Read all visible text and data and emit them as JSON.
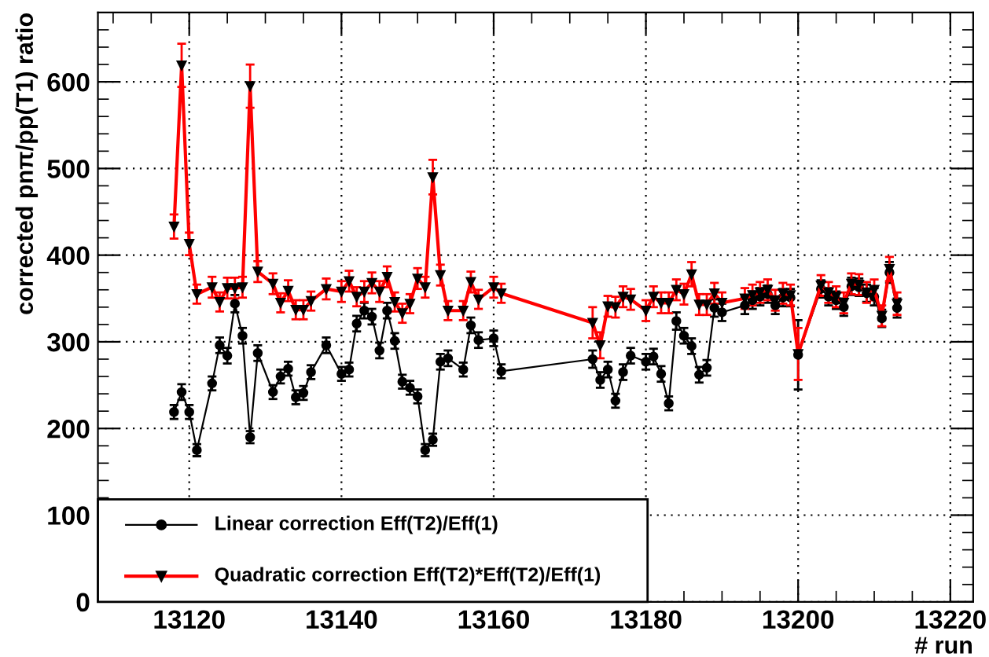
{
  "chart_data": {
    "type": "line",
    "xlabel": "# run",
    "ylabel": "corrected pnπ/pp(T1) ratio",
    "xlim": [
      13108,
      13223
    ],
    "xticks": [
      13120,
      13140,
      13160,
      13180,
      13200,
      13220
    ],
    "ylim": [
      0,
      680
    ],
    "yticks": [
      0,
      100,
      200,
      300,
      400,
      500,
      600
    ],
    "grid": true,
    "legend": "bottom left",
    "line_style": "solid",
    "series": [
      {
        "name": "Linear correction Eff(T2)/Eff(1)",
        "color": "#000000",
        "marker": "circle",
        "x": [
          13118,
          13119,
          13120,
          13121,
          13123,
          13124,
          13125,
          13126,
          13127,
          13128,
          13129,
          13131,
          13132,
          13133,
          13134,
          13135,
          13136,
          13138,
          13140,
          13141,
          13142,
          13143,
          13144,
          13145,
          13146,
          13147,
          13148,
          13149,
          13150,
          13151,
          13152,
          13153,
          13154,
          13156,
          13157,
          13158,
          13160,
          13161,
          13173,
          13174,
          13175,
          13176,
          13177,
          13178,
          13180,
          13181,
          13182,
          13183,
          13184,
          13185,
          13186,
          13187,
          13188,
          13189,
          13190,
          13193,
          13194,
          13195,
          13196,
          13197,
          13198,
          13199,
          13200,
          13203,
          13204,
          13205,
          13206,
          13207,
          13208,
          13209,
          13210,
          13211,
          13212,
          13213
        ],
        "values": [
          219,
          242,
          219,
          175,
          252,
          296,
          284,
          344,
          307,
          190,
          287,
          242,
          260,
          269,
          236,
          241,
          265,
          296,
          263,
          268,
          321,
          336,
          329,
          290,
          336,
          301,
          254,
          247,
          237,
          175,
          187,
          277,
          281,
          268,
          319,
          302,
          304,
          266,
          280,
          256,
          268,
          232,
          265,
          284,
          277,
          283,
          263,
          229,
          324,
          307,
          295,
          262,
          270,
          339,
          334,
          342,
          348,
          352,
          355,
          342,
          351,
          351,
          285,
          361,
          352,
          348,
          340,
          364,
          363,
          356,
          352,
          327,
          380,
          339
        ],
        "errors": [
          8,
          9,
          8,
          7,
          8,
          9,
          9,
          10,
          9,
          7,
          9,
          8,
          8,
          8,
          8,
          8,
          8,
          9,
          8,
          8,
          9,
          9,
          9,
          9,
          9,
          9,
          8,
          8,
          8,
          7,
          7,
          9,
          9,
          8,
          9,
          9,
          9,
          8,
          10,
          9,
          9,
          8,
          9,
          9,
          9,
          9,
          9,
          8,
          10,
          9,
          9,
          9,
          9,
          10,
          10,
          10,
          10,
          10,
          10,
          10,
          10,
          10,
          40,
          10,
          10,
          10,
          10,
          10,
          10,
          10,
          10,
          10,
          12,
          11
        ]
      },
      {
        "name": "Quadratic correction Eff(T2)*Eff(T2)/Eff(1)",
        "color": "#ff0000",
        "marker": "triangle",
        "x": [
          13118,
          13119,
          13120,
          13121,
          13123,
          13124,
          13125,
          13126,
          13127,
          13128,
          13129,
          13131,
          13132,
          13133,
          13134,
          13135,
          13136,
          13138,
          13140,
          13141,
          13142,
          13143,
          13144,
          13145,
          13146,
          13147,
          13148,
          13149,
          13150,
          13151,
          13152,
          13153,
          13154,
          13156,
          13157,
          13158,
          13160,
          13161,
          13173,
          13174,
          13175,
          13176,
          13177,
          13178,
          13180,
          13181,
          13182,
          13183,
          13184,
          13185,
          13186,
          13187,
          13188,
          13189,
          13190,
          13193,
          13194,
          13195,
          13196,
          13197,
          13198,
          13199,
          13200,
          13203,
          13204,
          13205,
          13206,
          13207,
          13208,
          13209,
          13210,
          13211,
          13212,
          13213
        ],
        "values": [
          433,
          619,
          413,
          355,
          363,
          346,
          362,
          362,
          363,
          595,
          381,
          367,
          345,
          359,
          337,
          337,
          347,
          361,
          358,
          370,
          352,
          358,
          368,
          358,
          375,
          346,
          333,
          344,
          373,
          363,
          490,
          377,
          336,
          336,
          369,
          349,
          363,
          356,
          322,
          296,
          341,
          340,
          352,
          349,
          336,
          352,
          345,
          345,
          360,
          355,
          378,
          343,
          343,
          356,
          345,
          350,
          354,
          357,
          360,
          348,
          356,
          354,
          286,
          365,
          357,
          352,
          345,
          367,
          366,
          357,
          360,
          330,
          384,
          344
        ],
        "errors": [
          14,
          25,
          13,
          11,
          12,
          11,
          12,
          12,
          12,
          25,
          12,
          12,
          11,
          12,
          11,
          11,
          11,
          12,
          12,
          12,
          11,
          12,
          12,
          12,
          12,
          11,
          11,
          11,
          12,
          12,
          20,
          12,
          11,
          11,
          12,
          11,
          12,
          11,
          18,
          15,
          12,
          12,
          12,
          12,
          12,
          12,
          12,
          12,
          12,
          12,
          14,
          12,
          12,
          12,
          12,
          12,
          12,
          12,
          12,
          12,
          12,
          12,
          30,
          12,
          12,
          12,
          12,
          12,
          12,
          12,
          12,
          12,
          14,
          13
        ]
      }
    ]
  }
}
